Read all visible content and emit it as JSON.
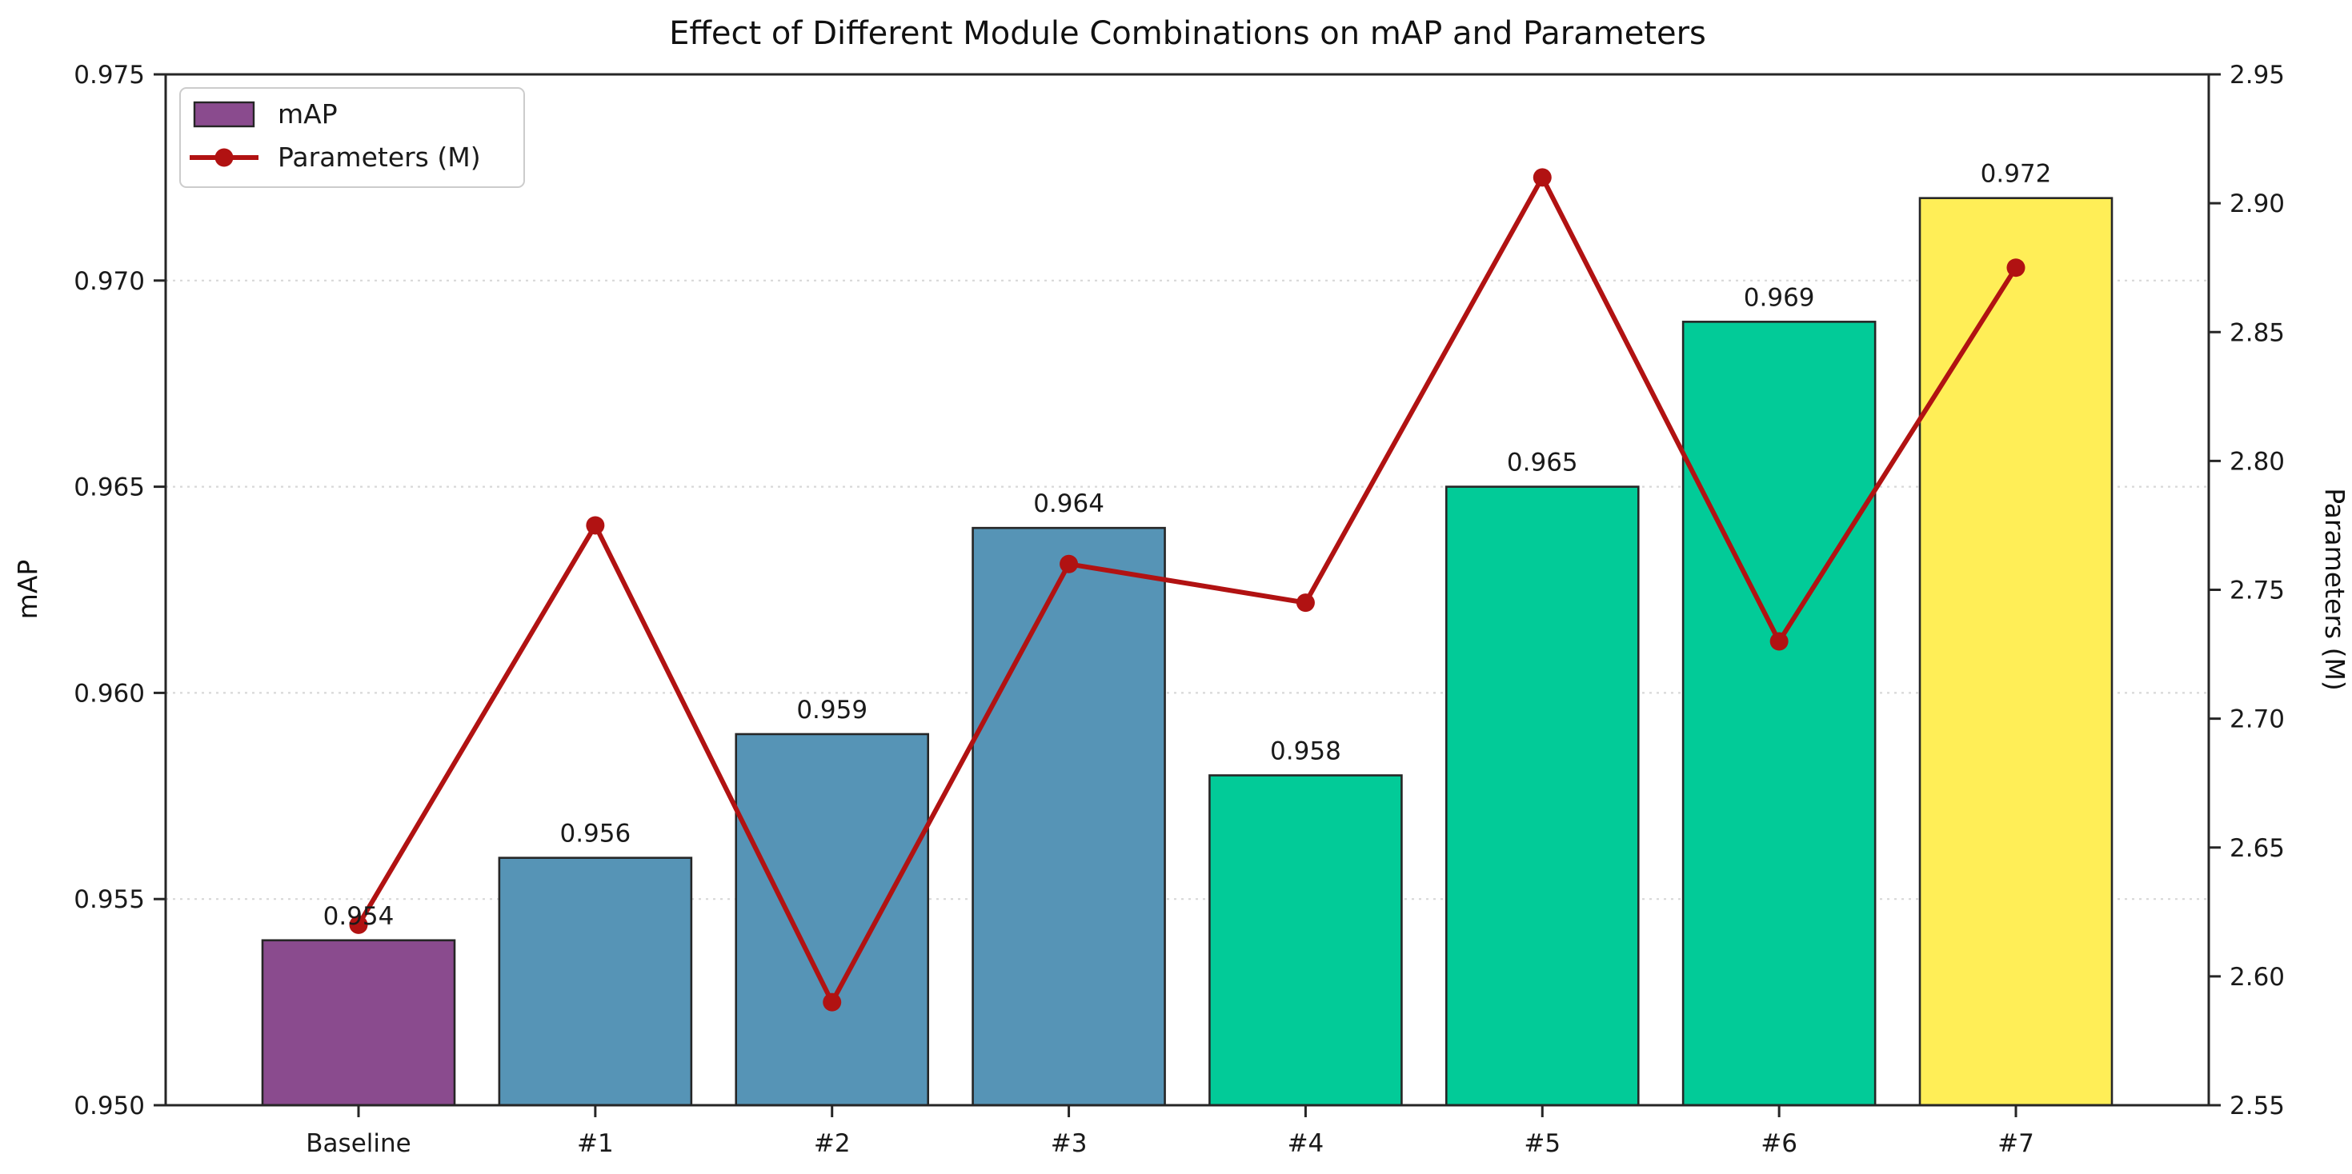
{
  "figure": {
    "title": "Effect of Different Module Combinations on mAP and Parameters"
  },
  "chart_data": {
    "type": "bar+line",
    "title": "Effect of Different Module Combinations on mAP and Parameters",
    "categories": [
      "Baseline",
      "#1",
      "#2",
      "#3",
      "#4",
      "#5",
      "#6",
      "#7"
    ],
    "series": [
      {
        "name": "mAP",
        "type": "bar",
        "axis": "left",
        "values": [
          0.954,
          0.956,
          0.959,
          0.964,
          0.958,
          0.965,
          0.969,
          0.972
        ],
        "value_labels": [
          "0.954",
          "0.956",
          "0.959",
          "0.964",
          "0.958",
          "0.965",
          "0.969",
          "0.972"
        ],
        "bar_colors": [
          "#8a4b8e",
          "#5694b6",
          "#5694b6",
          "#5694b6",
          "#02cb98",
          "#02cb98",
          "#02cb98",
          "#ffee57"
        ],
        "bar_edge_color": "#262626"
      },
      {
        "name": "Parameters (M)",
        "type": "line",
        "axis": "right",
        "values": [
          2.62,
          2.775,
          2.59,
          2.76,
          2.745,
          2.91,
          2.73,
          2.875
        ],
        "color": "#b11212",
        "marker": "circle"
      }
    ],
    "left_axis": {
      "label": "mAP",
      "range": [
        0.95,
        0.975
      ],
      "ticks": [
        "0.950",
        "0.955",
        "0.960",
        "0.965",
        "0.970",
        "0.975"
      ],
      "tick_values": [
        0.95,
        0.955,
        0.96,
        0.965,
        0.97,
        0.975
      ]
    },
    "right_axis": {
      "label": "Parameters (M)",
      "range": [
        2.55,
        2.95
      ],
      "ticks": [
        "2.55",
        "2.60",
        "2.65",
        "2.70",
        "2.75",
        "2.80",
        "2.85",
        "2.90",
        "2.95"
      ],
      "tick_values": [
        2.55,
        2.6,
        2.65,
        2.7,
        2.75,
        2.8,
        2.85,
        2.9,
        2.95
      ]
    },
    "grid": {
      "horizontal": true,
      "style": "dashed",
      "color": "#d8d8d8"
    },
    "legend": {
      "position": "upper-left",
      "entries": [
        {
          "label": "mAP",
          "type": "patch",
          "color": "#8a4b8e",
          "edge": "#262626"
        },
        {
          "label": "Parameters (M)",
          "type": "line-marker",
          "color": "#b11212"
        }
      ]
    },
    "spine_color": "#262626"
  }
}
